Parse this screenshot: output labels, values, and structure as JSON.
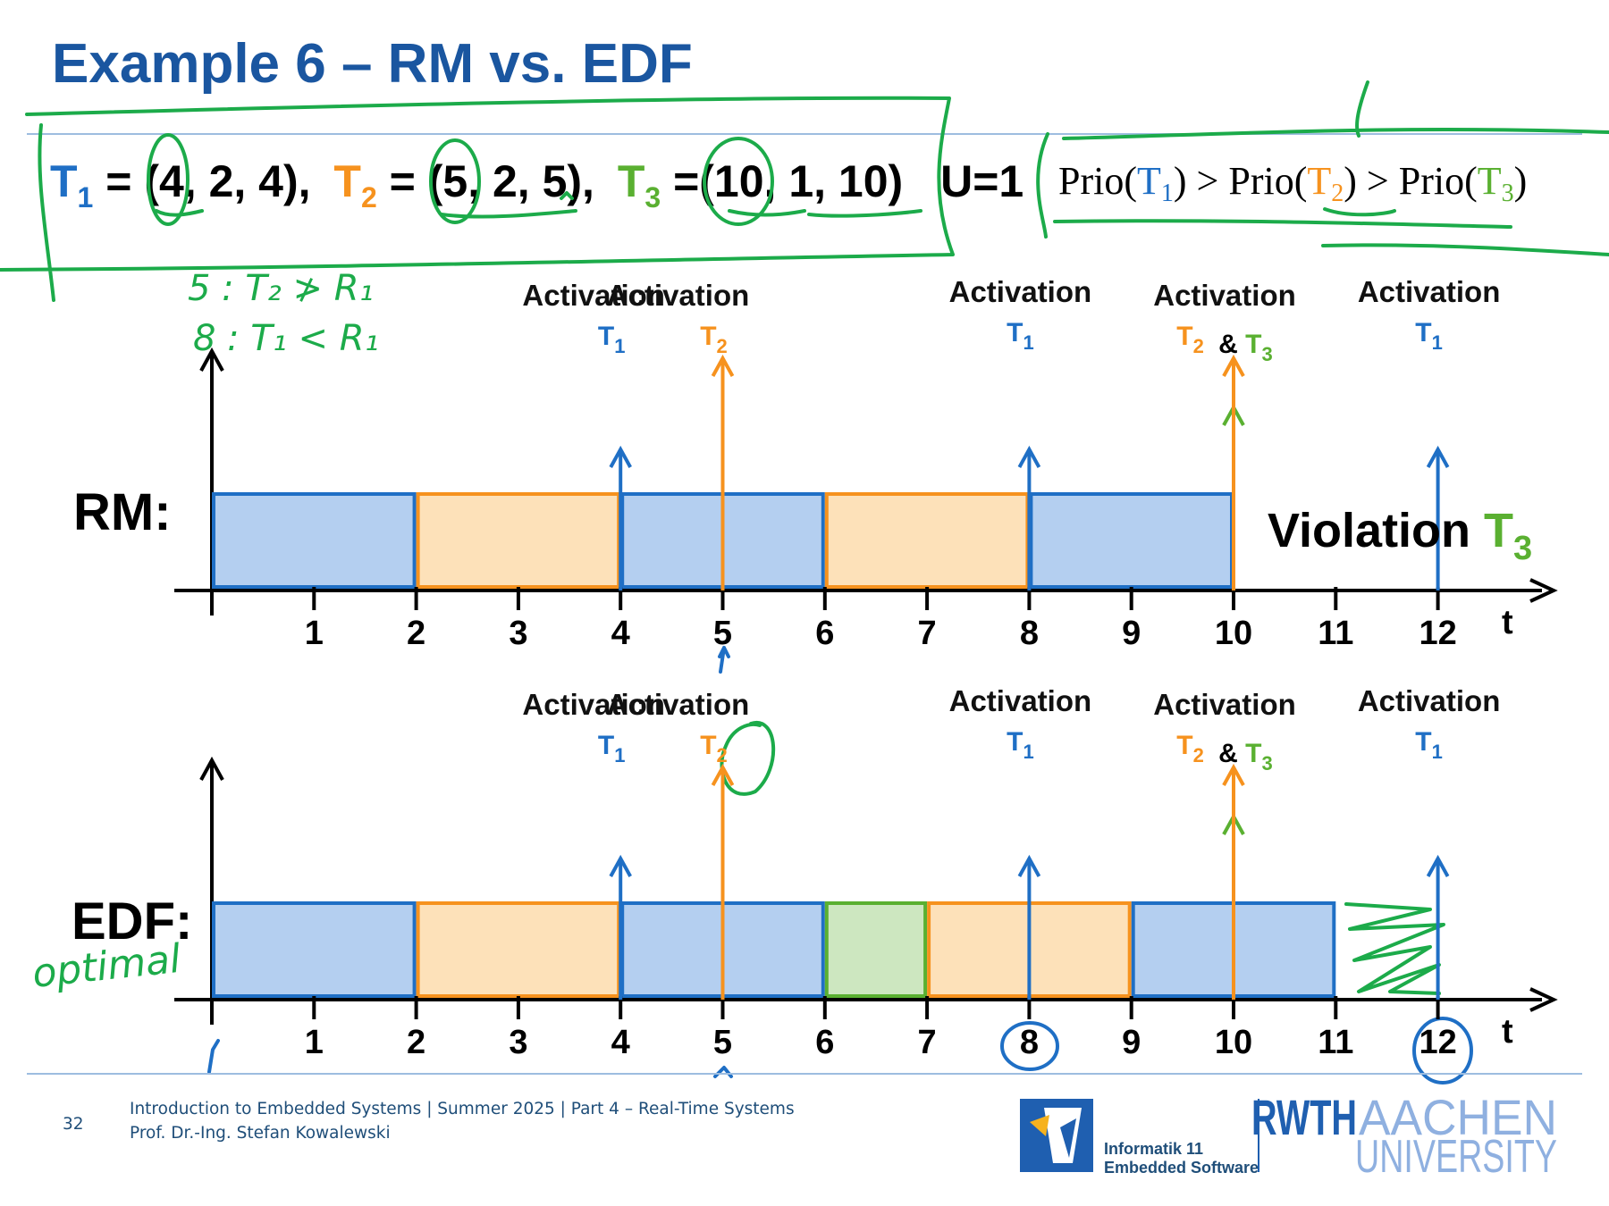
{
  "title": "Example 6 – RM vs. EDF",
  "colors": {
    "title": "#1a56a0",
    "t1": "#1f6fc5",
    "t2": "#f6921e",
    "t3": "#5ab031",
    "t1_fill": "#b4cff0",
    "t2_fill": "#fde1b9",
    "t3_fill": "#cde7c0",
    "ink": "#1cab4a"
  },
  "params": {
    "t1": {
      "label": "T",
      "sub": "1",
      "tail": " = (4, 2, 4),",
      "period": 4,
      "wcet": 2,
      "deadline": 4
    },
    "t2": {
      "label": "T",
      "sub": "2",
      "tail": " = (5, 2, 5),",
      "period": 5,
      "wcet": 2,
      "deadline": 5
    },
    "t3": {
      "label": "T",
      "sub": "3",
      "tail": " =(10, 1, 10)",
      "period": 10,
      "wcet": 1,
      "deadline": 10
    },
    "utilization": "U=1"
  },
  "priority": {
    "word": "Prio",
    "ops": [
      ") > ",
      ") > ",
      ")"
    ]
  },
  "activation_word": "Activation",
  "amp": "&",
  "axis_t": "t",
  "ticks": [
    "1",
    "2",
    "3",
    "4",
    "5",
    "6",
    "7",
    "8",
    "9",
    "10",
    "11",
    "12"
  ],
  "rm": {
    "label": "RM:",
    "schedule": [
      {
        "task": "t1",
        "start": 0,
        "end": 2
      },
      {
        "task": "t2",
        "start": 2,
        "end": 4
      },
      {
        "task": "t1",
        "start": 4,
        "end": 6
      },
      {
        "task": "t2",
        "start": 6,
        "end": 8
      },
      {
        "task": "t1",
        "start": 8,
        "end": 10
      }
    ],
    "violation": "Violation",
    "violation_task": "T",
    "violation_sub": "3"
  },
  "edf": {
    "label": "EDF:",
    "annotation": "optimal",
    "schedule": [
      {
        "task": "t1",
        "start": 0,
        "end": 2
      },
      {
        "task": "t2",
        "start": 2,
        "end": 4
      },
      {
        "task": "t1",
        "start": 4,
        "end": 6
      },
      {
        "task": "t3",
        "start": 6,
        "end": 7
      },
      {
        "task": "t2",
        "start": 7,
        "end": 9
      },
      {
        "task": "t1",
        "start": 9,
        "end": 11
      }
    ]
  },
  "activations": [
    {
      "time": 4,
      "tasks": [
        "t1"
      ]
    },
    {
      "time": 5,
      "tasks": [
        "t2"
      ]
    },
    {
      "time": 8,
      "tasks": [
        "t1"
      ]
    },
    {
      "time": 10,
      "tasks": [
        "t2",
        "t3"
      ]
    },
    {
      "time": 12,
      "tasks": [
        "t1"
      ]
    }
  ],
  "ink_notes": {
    "line1": "5 : T₂ ≯ R₁",
    "line2": "8 : T₁ < R₁"
  },
  "footer": {
    "page": "32",
    "line1": "Introduction to Embedded Systems | Summer 2025 | Part 4 – Real-Time Systems",
    "line2": "Prof. Dr.-Ing. Stefan Kowalewski",
    "inst1": "Informatik 11",
    "inst2": "Embedded Software",
    "rwth": "RWTH",
    "aachen": "AACHEN",
    "university": "UNIVERSITY"
  }
}
